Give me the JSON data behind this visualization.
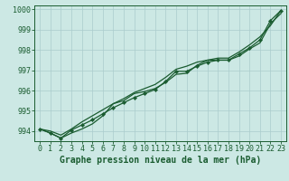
{
  "title": "",
  "xlabel": "Graphe pression niveau de la mer (hPa)",
  "background_color": "#cce8e4",
  "grid_color": "#aacccc",
  "line_color": "#1a5c30",
  "marker_color": "#1a5c30",
  "xlim": [
    -0.5,
    23.5
  ],
  "ylim": [
    993.5,
    1000.2
  ],
  "yticks": [
    994,
    995,
    996,
    997,
    998,
    999,
    1000
  ],
  "xticks": [
    0,
    1,
    2,
    3,
    4,
    5,
    6,
    7,
    8,
    9,
    10,
    11,
    12,
    13,
    14,
    15,
    16,
    17,
    18,
    19,
    20,
    21,
    22,
    23
  ],
  "series": [
    [
      994.1,
      993.9,
      993.65,
      993.9,
      994.1,
      994.35,
      994.75,
      995.35,
      995.5,
      995.85,
      995.95,
      996.1,
      996.4,
      996.8,
      996.85,
      997.25,
      997.5,
      997.5,
      997.5,
      997.7,
      998.05,
      998.35,
      999.3,
      999.8
    ],
    [
      994.1,
      993.9,
      993.65,
      994.05,
      994.3,
      994.55,
      994.85,
      995.15,
      995.4,
      995.65,
      995.85,
      996.05,
      996.45,
      996.95,
      996.95,
      997.2,
      997.4,
      997.5,
      997.5,
      997.8,
      998.1,
      998.5,
      999.45,
      999.95
    ],
    [
      994.1,
      994.0,
      993.8,
      994.1,
      994.45,
      994.75,
      995.05,
      995.35,
      995.6,
      995.9,
      996.1,
      996.3,
      996.65,
      997.05,
      997.2,
      997.4,
      997.5,
      997.6,
      997.6,
      997.9,
      998.25,
      998.65,
      999.2,
      999.95
    ]
  ],
  "marker_series": 1,
  "xlabel_fontsize": 7,
  "tick_fontsize": 6
}
